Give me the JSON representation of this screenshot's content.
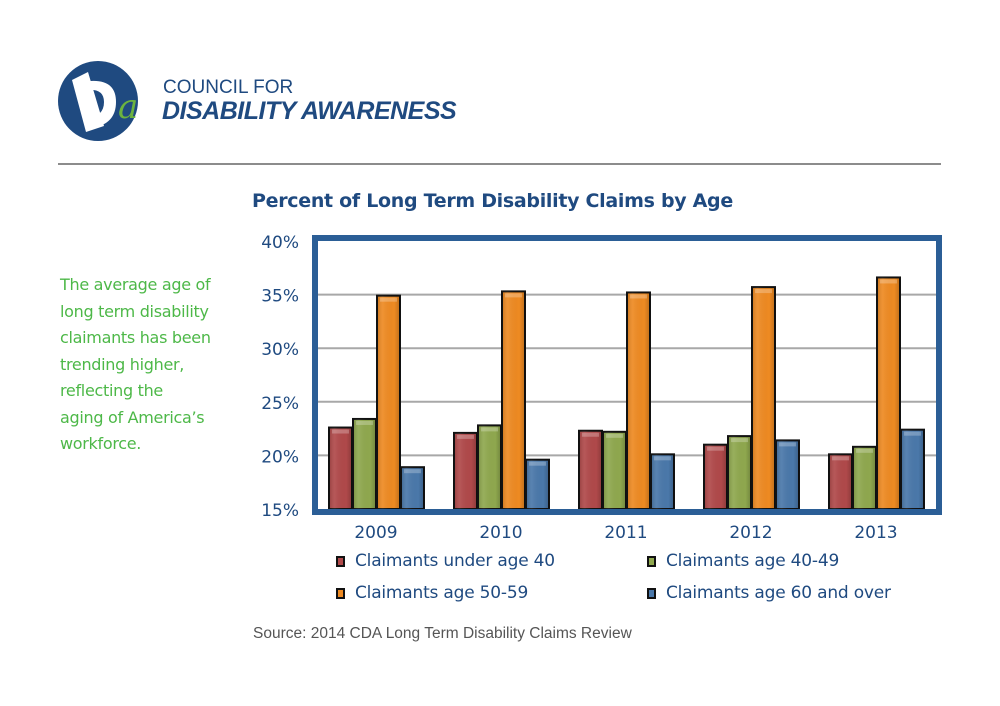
{
  "brand": {
    "logo_letters": "Da",
    "line1": "COUNCIL FOR",
    "line2": "DISABILITY AWARENESS"
  },
  "side_text": {
    "lines": [
      "The average age of",
      "long term disability",
      "claimants has been",
      "trending higher,",
      "reflecting the",
      "aging of America’s",
      "workforce."
    ]
  },
  "source": "Source: 2014 CDA Long Term Disability Claims Review",
  "colors": {
    "brand_blue": "#1f4a80",
    "frame_blue": "#2b5e96",
    "accent_green": "#4db848"
  },
  "chart_data": {
    "type": "bar",
    "title": "Percent of Long Term Disability Claims by Age",
    "xlabel": "",
    "ylabel": "",
    "categories": [
      "2009",
      "2010",
      "2011",
      "2012",
      "2013"
    ],
    "ylim": [
      15,
      40
    ],
    "yticks": [
      15,
      20,
      25,
      30,
      35,
      40
    ],
    "ytick_labels": [
      "15%",
      "20%",
      "25%",
      "30%",
      "35%",
      "40%"
    ],
    "grid": true,
    "legend_position": "bottom",
    "series": [
      {
        "name": "Claimants under age 40",
        "color": "#b0494a",
        "values": [
          22.6,
          22.1,
          22.3,
          21.0,
          20.1
        ]
      },
      {
        "name": "Claimants age 40-49",
        "color": "#8fa84e",
        "values": [
          23.4,
          22.8,
          22.2,
          21.8,
          20.8
        ]
      },
      {
        "name": "Claimants age 50-59",
        "color": "#ee8a22",
        "values": [
          34.9,
          35.3,
          35.2,
          35.7,
          36.6
        ]
      },
      {
        "name": "Claimants age 60 and over",
        "color": "#4a78aa",
        "values": [
          18.9,
          19.6,
          20.1,
          21.4,
          22.4
        ]
      }
    ]
  }
}
